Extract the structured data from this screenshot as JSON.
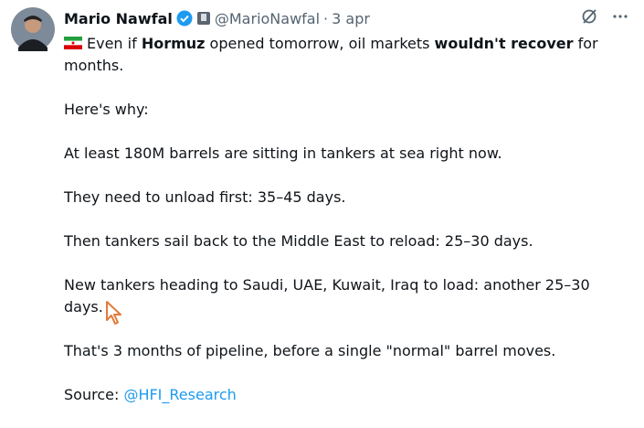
{
  "tweet": {
    "author": {
      "name": "Mario Nawfal",
      "handle": "@MarioNawfal",
      "separator": "·",
      "time": "3 apr"
    },
    "paragraphs": [
      {
        "flag": true,
        "segments": [
          {
            "text": "Even if "
          },
          {
            "text": "Hormuz",
            "bold": true
          },
          {
            "text": " opened tomorrow, oil markets "
          },
          {
            "text": "wouldn't recover",
            "bold": true
          },
          {
            "text": " for months."
          }
        ]
      },
      {
        "segments": [
          {
            "text": "Here's why:"
          }
        ]
      },
      {
        "segments": [
          {
            "text": "At least 180M barrels are sitting in tankers at sea right now."
          }
        ]
      },
      {
        "segments": [
          {
            "text": "They need to unload first: 35–45 days."
          }
        ]
      },
      {
        "segments": [
          {
            "text": "Then tankers sail back to the Middle East to reload: 25–30 days."
          }
        ]
      },
      {
        "segments": [
          {
            "text": "New tankers heading to Saudi, UAE, Kuwait, Iraq to load: another 25–30 days."
          }
        ]
      },
      {
        "segments": [
          {
            "text": "That's 3 months of pipeline, before a single \"normal\" barrel moves."
          }
        ]
      },
      {
        "segments": [
          {
            "text": "Source: "
          },
          {
            "text": "@HFI_Research",
            "link": true
          }
        ]
      }
    ]
  }
}
